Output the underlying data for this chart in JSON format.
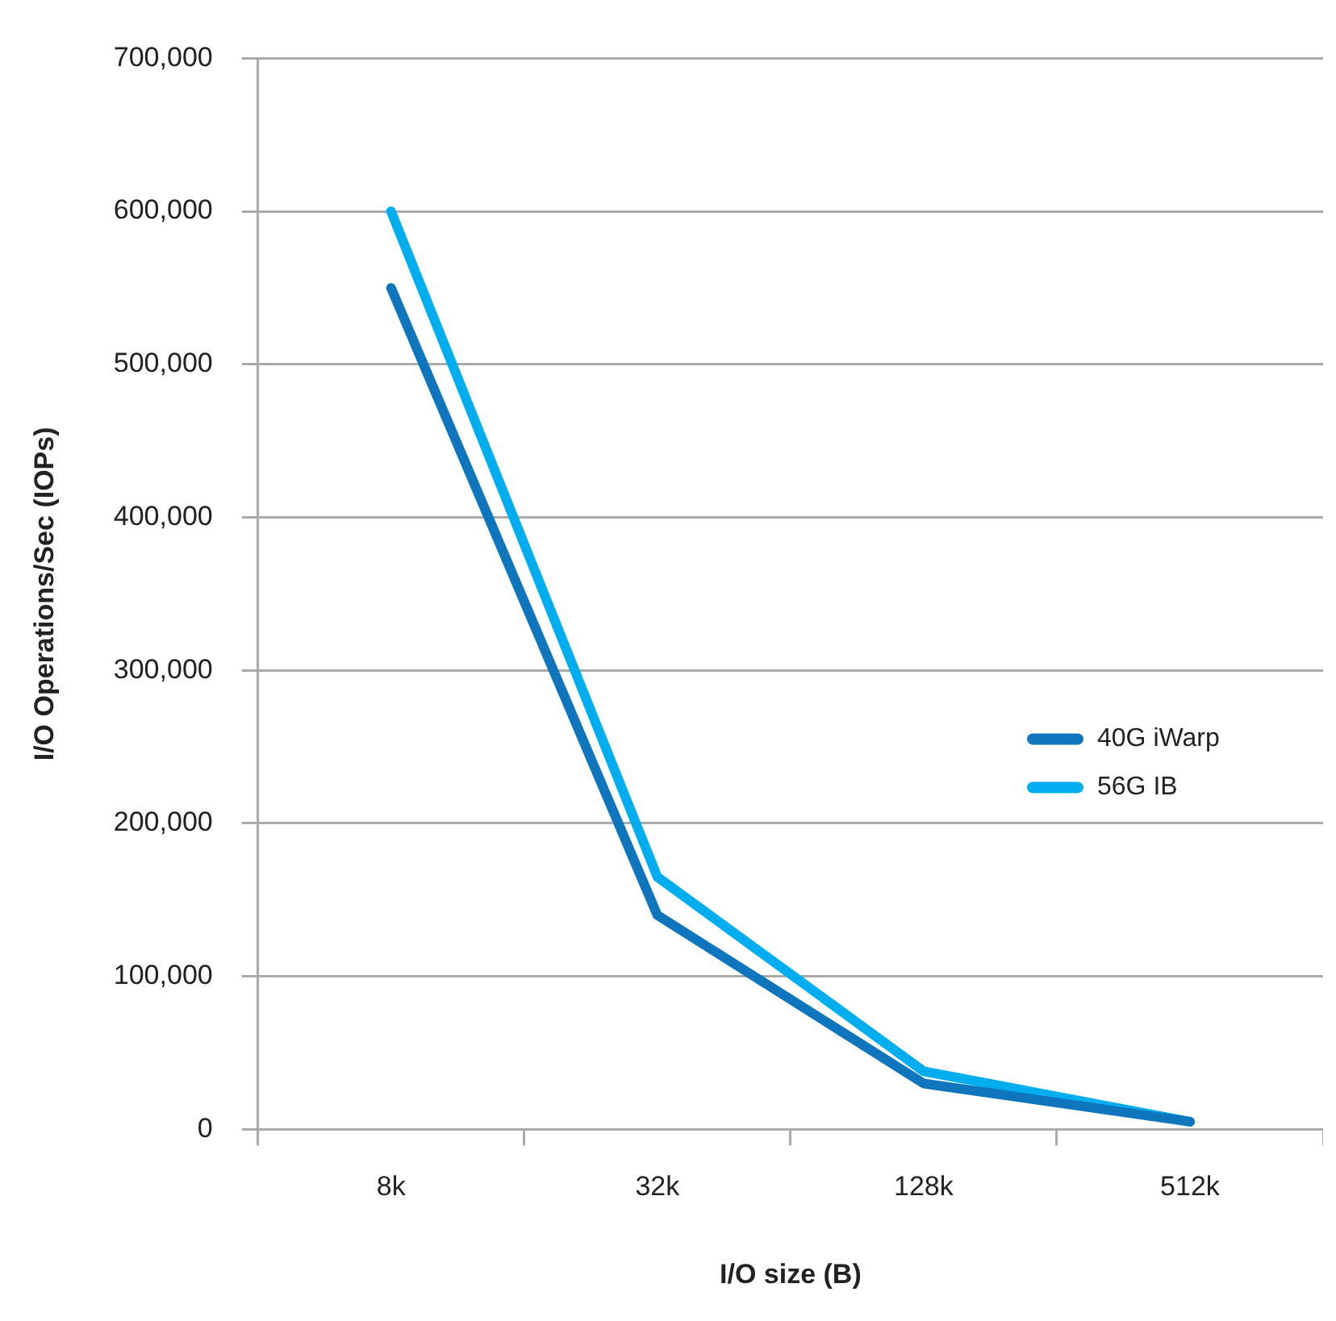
{
  "chart_data": {
    "type": "line",
    "xlabel": "I/O size (B)",
    "ylabel": "I/O Operations/Sec (IOPs)",
    "categories": [
      "8k",
      "32k",
      "128k",
      "512k"
    ],
    "series": [
      {
        "name": "40G iWarp",
        "color": "#0f75bc",
        "values": [
          550000,
          140000,
          30000,
          5000
        ]
      },
      {
        "name": "56G IB",
        "color": "#00aeef",
        "values": [
          600000,
          165000,
          38000,
          5000
        ]
      }
    ],
    "ylim": [
      0,
      700000
    ],
    "yticks": [
      0,
      {
        "value": 100000,
        "label": "100,000"
      },
      {
        "value": 200000,
        "label": "200,000"
      },
      {
        "value": 300000,
        "label": "300,000"
      },
      {
        "value": 400000,
        "label": "400,000"
      },
      {
        "value": 500000,
        "label": "500,000"
      },
      {
        "value": 600000,
        "label": "600,000"
      },
      {
        "value": 700000,
        "label": "700,000"
      }
    ],
    "grid": "y",
    "legend": "right",
    "marker": "none",
    "line_style": "solid"
  }
}
